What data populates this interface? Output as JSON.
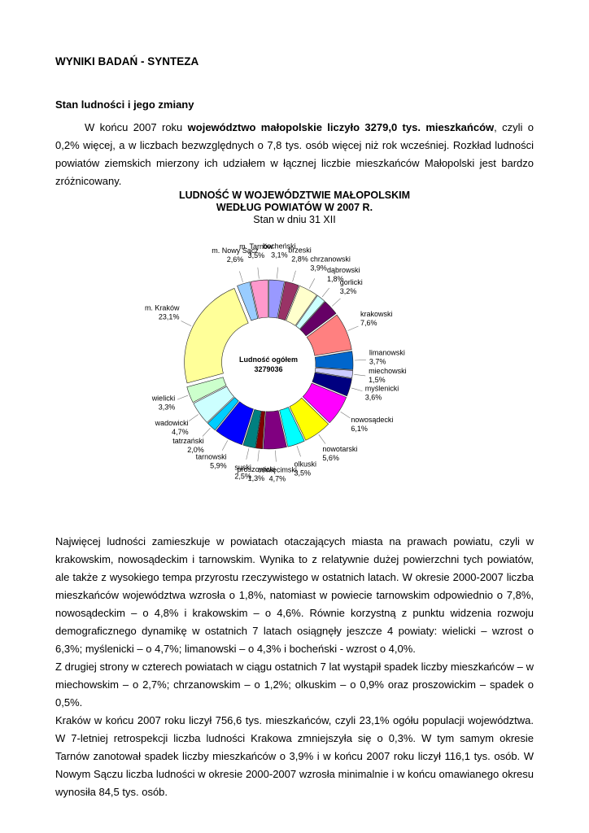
{
  "heading": "WYNIKI BADAŃ - SYNTEZA",
  "section_title": "Stan ludności i jego zmiany",
  "intro": [
    "W końcu 2007 roku ",
    "województwo małopolskie liczyło 3279,0 tys. mieszkańców",
    ", czyli o 0,2% więcej, a w liczbach bezwzględnych o 7,8 tys. osób więcej niż rok wcześniej. Rozkład ludności powiatów ziemskich mierzony ich udziałem w łącznej liczbie mieszkańców Małopolski jest bardzo zróżnicowany."
  ],
  "chart_data": {
    "type": "pie",
    "title": "LUDNOŚĆ W WOJEWÓDZTWIE MAŁOPOLSKIM WEDŁUG POWIATÓW W 2007 R.",
    "subtitle": "Stan w dniu 31 XII",
    "center_label": "Ludność ogółem",
    "center_value": 3279036,
    "categories": [
      "bocheński",
      "brzeski",
      "chrzanowski",
      "dąbrowski",
      "gorlicki",
      "krakowski",
      "limanowski",
      "miechowski",
      "myślenicki",
      "nowosądecki",
      "nowotarski",
      "olkuski",
      "oświęcimski",
      "proszowicki",
      "suski",
      "tarnowski",
      "tatrzański",
      "wadowicki",
      "wielicki",
      "m. Kraków",
      "m. Nowy Sącz",
      "m. Tarnów"
    ],
    "values": [
      3.1,
      2.8,
      3.9,
      1.8,
      3.2,
      7.6,
      3.7,
      1.5,
      3.6,
      6.1,
      5.6,
      3.5,
      4.7,
      1.3,
      2.5,
      5.9,
      2.0,
      4.7,
      3.3,
      23.1,
      2.6,
      3.5
    ],
    "value_labels": [
      "3,1%",
      "2,8%",
      "3,9%",
      "1,8%",
      "3,2%",
      "7,6%",
      "3,7%",
      "1,5%",
      "3,6%",
      "6,1%",
      "5,6%",
      "3,5%",
      "4,7%",
      "1,3%",
      "2,5%",
      "5,9%",
      "2,0%",
      "4,7%",
      "3,3%",
      "23,1%",
      "2,6%",
      "3,5%"
    ],
    "colors": [
      "#9999ff",
      "#993366",
      "#ffffcc",
      "#ccffff",
      "#660066",
      "#ff8080",
      "#0066cc",
      "#ccccff",
      "#000080",
      "#ff00ff",
      "#ffff00",
      "#00ffff",
      "#800080",
      "#800000",
      "#008080",
      "#0000ff",
      "#00ccff",
      "#ccffff",
      "#ccffcc",
      "#ffff99",
      "#99ccff",
      "#ff99cc"
    ]
  },
  "paragraphs": [
    "Najwięcej ludności zamieszkuje w powiatach otaczających miasta na prawach powiatu, czyli w krakowskim, nowosądeckim i tarnowskim. Wynika to z relatywnie dużej powierzchni tych powiatów, ale także z wysokiego tempa przyrostu rzeczywistego w ostatnich latach. W okresie 2000-2007 liczba mieszkańców województwa wzrosła o 1,8%, natomiast w powiecie tarnowskim odpowiednio o 7,8%, nowosądeckim – o 4,8% i krakowskim – o 4,6%. Równie korzystną z punktu widzenia rozwoju demograficznego dynamikę w ostatnich 7 latach osiągnęły jeszcze 4 powiaty: wielicki – wzrost o 6,3%; myślenicki – o 4,7%; limanowski – o 4,3% i bocheński - wzrost o 4,0%.",
    "Z drugiej strony w czterech powiatach w ciągu ostatnich 7 lat wystąpił spadek liczby mieszkańców – w miechowskim – o 2,7%; chrzanowskim – o 1,2%; olkuskim – o 0,9% oraz proszowickim – spadek o 0,5%.",
    "Kraków w końcu 2007 roku liczył 756,6 tys. mieszkańców, czyli 23,1% ogółu populacji województwa. W 7-letniej retrospekcji liczba ludności Krakowa zmniejszyła się o 0,3%. W tym samym okresie Tarnów zanotował spadek liczby mieszkańców o 3,9% i w końcu 2007 roku liczył 116,1 tys. osób. W Nowym Sączu liczba ludności w okresie 2000-2007 wzrosła minimalnie i w końcu omawianego okresu wynosiła 84,5 tys. osób."
  ]
}
